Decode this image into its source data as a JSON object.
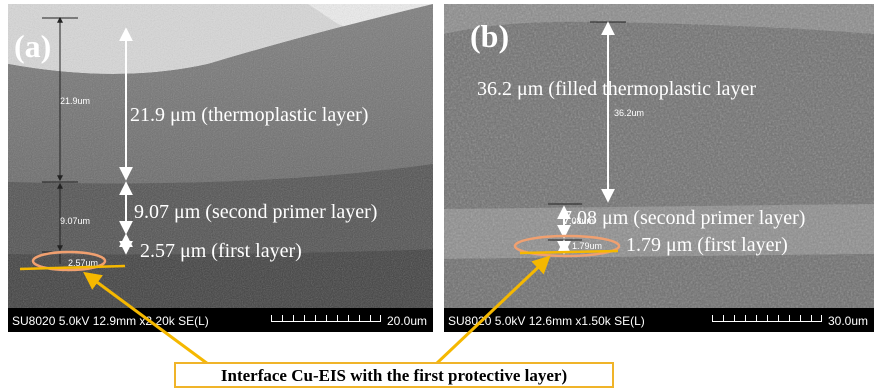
{
  "panel_a": {
    "label": "(a)",
    "small_measure_top": "21.9um",
    "small_measure_mid": "9.07um",
    "small_measure_bottom": "2.57um",
    "annotation_thermoplastic": "21.9 μm (thermoplastic layer)",
    "annotation_second_primer": "9.07 μm (second primer layer)",
    "annotation_first_layer": "2.57 μm (first layer)",
    "info_bar": "SU8020 5.0kV 12.9mm x2.20k SE(L)",
    "scale_label": "20.0um"
  },
  "panel_b": {
    "label": "(b)",
    "small_measure_top": "36.2um",
    "small_measure_mid": "7.08um",
    "small_measure_bottom": "1.79um",
    "annotation_thermoplastic": "36.2 μm  (filled thermoplastic layer",
    "annotation_second_primer": "7.08 μm (second primer layer)",
    "annotation_first_layer": "1.79 μm (first layer)",
    "info_bar": "SU8020 5.0kV 12.6mm x1.50k SE(L)",
    "scale_label": "30.0um"
  },
  "caption": "Interface Cu-EIS with the first protective layer)",
  "colors": {
    "arrow": "#f5b800",
    "ellipse": "#f0a070",
    "caption_border": "#f0b429"
  }
}
